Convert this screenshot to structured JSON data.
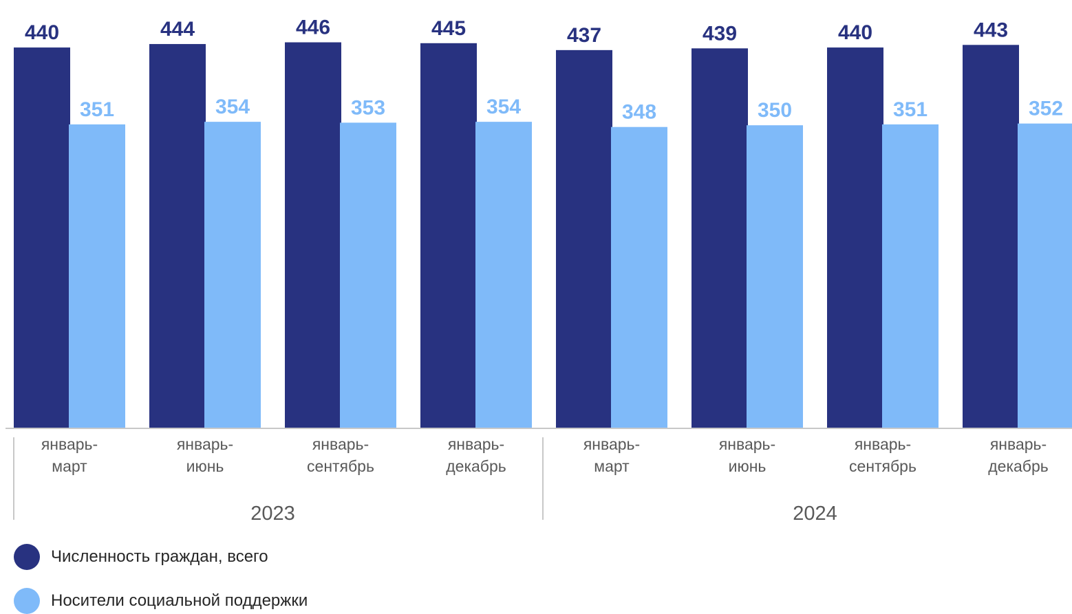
{
  "chart_data": {
    "type": "bar",
    "categories": [
      "январь-март",
      "январь-июнь",
      "январь-сентябрь",
      "январь-декабрь",
      "январь-март",
      "январь-июнь",
      "январь-сентябрь",
      "январь-декабрь"
    ],
    "category_lines": [
      [
        "январь-",
        "март"
      ],
      [
        "январь-",
        "июнь"
      ],
      [
        "январь-",
        "сентябрь"
      ],
      [
        "январь-",
        "декабрь"
      ],
      [
        "январь-",
        "март"
      ],
      [
        "январь-",
        "июнь"
      ],
      [
        "январь-",
        "сентябрь"
      ],
      [
        "январь-",
        "декабрь"
      ]
    ],
    "groups": [
      {
        "label": "2023",
        "start": 0,
        "end": 3
      },
      {
        "label": "2024",
        "start": 4,
        "end": 7
      }
    ],
    "series": [
      {
        "name": "Численность граждан, всего",
        "color": "#283280",
        "values": [
          440,
          444,
          446,
          445,
          437,
          439,
          440,
          443
        ]
      },
      {
        "name": "Носители социальной поддержки",
        "color": "#7fbaf9",
        "values": [
          351,
          354,
          353,
          354,
          348,
          350,
          351,
          352
        ]
      }
    ],
    "title": "",
    "xlabel": "",
    "ylabel": "",
    "ylim": [
      0,
      452
    ],
    "grid": false,
    "legend_position": "bottom-left",
    "data_labels": true
  },
  "legend": {
    "items": [
      {
        "label": "Численность граждан, всего",
        "color": "#283280"
      },
      {
        "label": "Носители социальной поддержки",
        "color": "#7fbaf9"
      }
    ]
  }
}
